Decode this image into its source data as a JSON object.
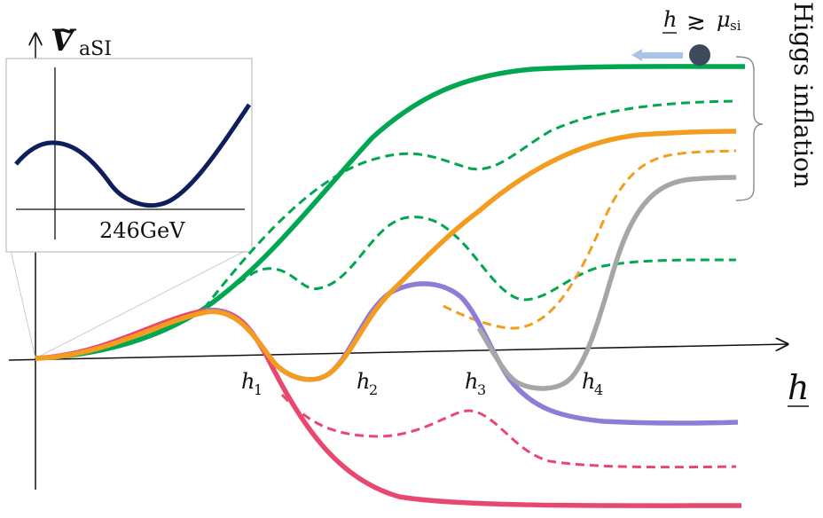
{
  "axis": {
    "y_symbol": "V",
    "y_subscript": "aSI",
    "x_label": "h"
  },
  "points": [
    "h",
    "h",
    "h",
    "h"
  ],
  "point_subscripts": [
    "1",
    "2",
    "3",
    "4"
  ],
  "inset": {
    "label": "246GeV"
  },
  "ball": {
    "h": "h",
    "relation": "≳",
    "mu": "μ",
    "mu_subscript": "si"
  },
  "brace_label": "Higgs inflation",
  "colors": {
    "green": "#00a650",
    "orange": "#f39c1f",
    "gray": "#a6a6a6",
    "purple": "#8f7bd8",
    "red": "#e8486f",
    "navy": "#0f1f5c",
    "ball": "#3c4a5c",
    "arrow": "#a9c4e9"
  }
}
